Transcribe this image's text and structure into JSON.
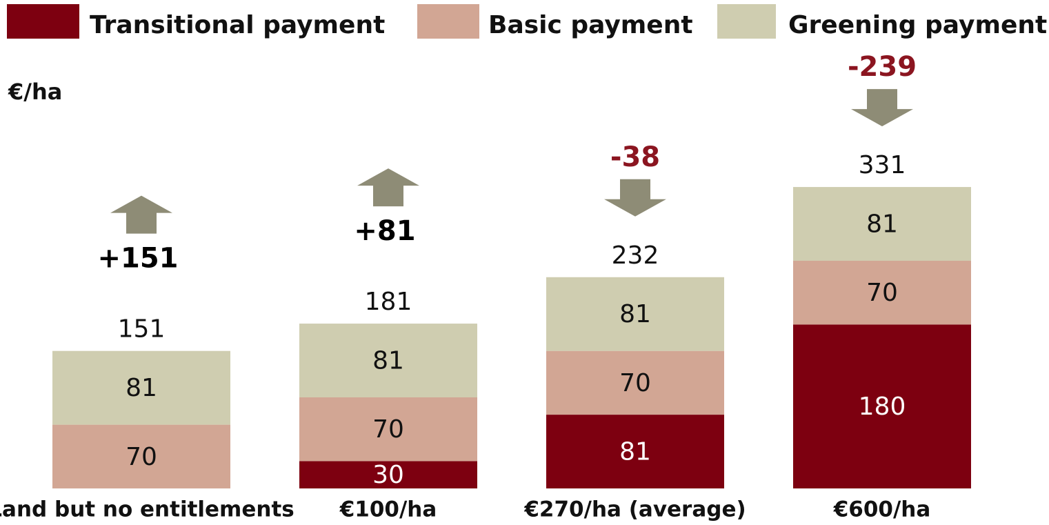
{
  "chart_data": {
    "type": "stacked_bar",
    "y_label": "€/ha",
    "categories": [
      "Land but no entitlements",
      "€100/ha",
      "€270/ha (average)",
      "€600/ha"
    ],
    "series": [
      {
        "name": "Transitional payment",
        "color": "#7d0010",
        "values": [
          null,
          30,
          81,
          180
        ]
      },
      {
        "name": "Basic payment",
        "color": "#d2a694",
        "values": [
          70,
          70,
          70,
          70
        ]
      },
      {
        "name": "Greening payment",
        "color": "#cfcdb0",
        "values": [
          81,
          81,
          81,
          81
        ]
      }
    ],
    "totals": [
      151,
      181,
      232,
      331
    ],
    "changes": {
      "values": [
        151,
        81,
        -38,
        -239
      ],
      "value_labels": [
        "+151",
        "+81",
        "-38",
        "-239"
      ]
    },
    "ylim": [
      0,
      500
    ]
  }
}
